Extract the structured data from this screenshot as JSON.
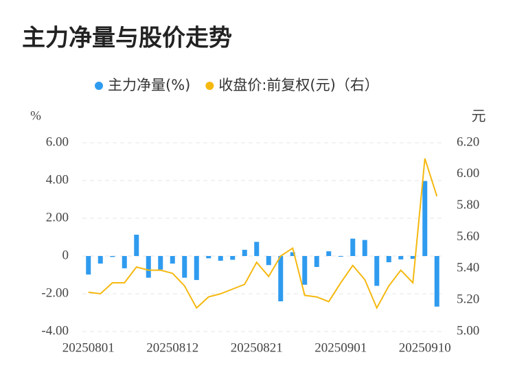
{
  "chart_data": {
    "type": "bar-line",
    "title": "主力净量与股价走势",
    "y_label": "%",
    "y2_label": "元",
    "categories": [
      "20250801",
      null,
      null,
      null,
      null,
      null,
      null,
      "20250812",
      null,
      null,
      null,
      null,
      null,
      null,
      "20250821",
      null,
      null,
      null,
      null,
      null,
      null,
      "20250901",
      null,
      null,
      null,
      null,
      null,
      null,
      "20250910",
      null
    ],
    "series": [
      {
        "name": "主力净量(%)",
        "color": "#2f9bef",
        "type": "bar",
        "values": [
          -0.98,
          -0.4,
          -0.05,
          -0.65,
          1.13,
          -1.15,
          -0.72,
          -0.4,
          -1.15,
          -1.27,
          -0.12,
          -0.25,
          -0.2,
          0.33,
          0.75,
          -0.48,
          -2.4,
          0.2,
          -1.52,
          -0.58,
          0.25,
          -0.03,
          0.92,
          0.85,
          -1.58,
          -0.33,
          -0.18,
          -0.15,
          3.97,
          -2.68
        ]
      },
      {
        "name": "收盘价:前复权(元)（右）",
        "color": "#f5b80f",
        "type": "line",
        "axis": "y2",
        "values": [
          5.25,
          5.24,
          5.31,
          5.31,
          5.41,
          5.39,
          5.39,
          5.37,
          5.29,
          5.15,
          5.22,
          5.24,
          5.27,
          5.3,
          5.44,
          5.35,
          5.48,
          5.53,
          5.23,
          5.22,
          5.19,
          5.31,
          5.42,
          5.33,
          5.15,
          5.29,
          5.39,
          5.31,
          6.1,
          5.86
        ]
      }
    ],
    "ylim": [
      -4,
      6
    ],
    "yticks": [
      {
        "value": -4,
        "label": "-4.00"
      },
      {
        "value": -2,
        "label": "-2.00"
      },
      0,
      {
        "value": 2,
        "label": "2.00"
      },
      {
        "value": 4,
        "label": "4.00"
      },
      {
        "value": 6,
        "label": "6.00"
      }
    ],
    "y2lim": [
      5,
      6.2
    ],
    "y2ticks": [
      {
        "value": 5,
        "label": "5.00"
      },
      {
        "value": 5.2,
        "label": "5.20"
      },
      {
        "value": 5.4,
        "label": "5.40"
      },
      {
        "value": 5.6,
        "label": "5.60"
      },
      {
        "value": 5.8,
        "label": "5.80"
      },
      {
        "value": 6,
        "label": "6.00"
      },
      {
        "value": 6.2,
        "label": "6.20"
      }
    ],
    "grid": true
  }
}
